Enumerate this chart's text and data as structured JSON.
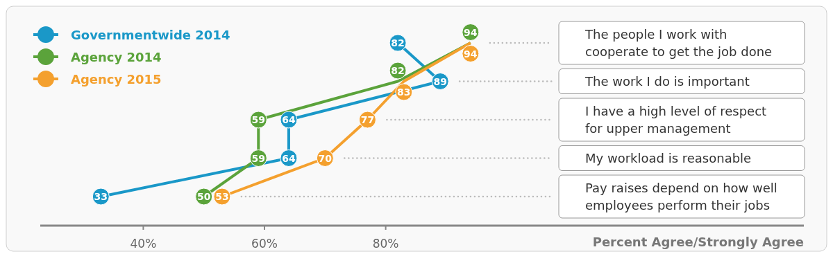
{
  "chart_data": {
    "type": "line",
    "orientation": "horizontal",
    "xlabel": "Percent Agree/Strongly Agree",
    "categories": [
      "The people I work with cooperate to get the job done",
      "The work I do is important",
      "I have a high level of respect for upper management",
      "My workload is reasonable",
      "Pay raises depend on how well employees perform their jobs"
    ],
    "series": [
      {
        "name": "Governmentwide 2014",
        "color": "#1a98c8",
        "values": [
          82,
          89,
          64,
          64,
          33
        ]
      },
      {
        "name": "Agency 2014",
        "color": "#5ba33b",
        "values": [
          94,
          82,
          59,
          59,
          50
        ]
      },
      {
        "name": "Agency 2015",
        "color": "#f4a02e",
        "values": [
          94,
          83,
          77,
          70,
          53
        ]
      }
    ],
    "xlim": [
      23,
      149
    ],
    "xticks": [
      {
        "value": 40,
        "label": "40%"
      },
      {
        "value": 60,
        "label": "60%"
      },
      {
        "value": 80,
        "label": "80%"
      }
    ],
    "marker": "circle",
    "data_labels": true,
    "legend": "top left",
    "grid": false
  }
}
